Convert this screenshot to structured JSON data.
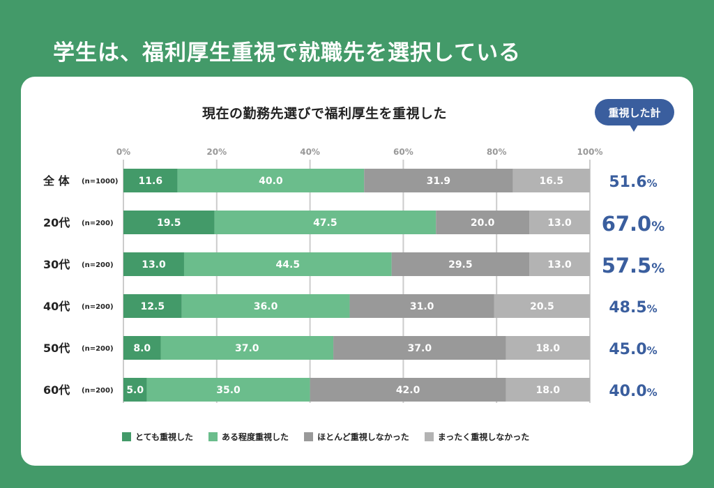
{
  "page": {
    "title": "学生は、福利厚生重視で就職先を選択している"
  },
  "callout": {
    "label": "重視した計"
  },
  "chart_data": {
    "type": "bar",
    "orientation": "horizontal",
    "stacked": true,
    "title": "現在の勤務先選びで福利厚生を重視した",
    "xlabel": "",
    "ylabel": "",
    "xlim": [
      0,
      100
    ],
    "x_ticks": [
      "0%",
      "20%",
      "40%",
      "60%",
      "80%",
      "100%"
    ],
    "grid": true,
    "legend_position": "bottom",
    "categories": [
      {
        "label": "全 体",
        "n": "(n=1000)"
      },
      {
        "label": "20代",
        "n": "(n=200)"
      },
      {
        "label": "30代",
        "n": "(n=200)"
      },
      {
        "label": "40代",
        "n": "(n=200)"
      },
      {
        "label": "50代",
        "n": "(n=200)"
      },
      {
        "label": "60代",
        "n": "(n=200)"
      }
    ],
    "series": [
      {
        "name": "とても重視した",
        "color": "#439a69",
        "values": [
          11.6,
          19.5,
          13.0,
          12.5,
          8.0,
          5.0
        ]
      },
      {
        "name": "ある程度重視した",
        "color": "#6bbd8c",
        "values": [
          40.0,
          47.5,
          44.5,
          36.0,
          37.0,
          35.0
        ]
      },
      {
        "name": "ほとんど重視しなかった",
        "color": "#999999",
        "values": [
          31.9,
          20.0,
          29.5,
          31.0,
          37.0,
          42.0
        ]
      },
      {
        "name": "まったく重視しなかった",
        "color": "#b3b3b3",
        "values": [
          16.5,
          13.0,
          13.0,
          20.5,
          18.0,
          18.0
        ]
      }
    ],
    "totals": {
      "label": "重視した計",
      "values": [
        "51.6",
        "67.0",
        "57.5",
        "48.5",
        "45.0",
        "40.0"
      ],
      "unit": "%",
      "emphasized": [
        false,
        true,
        true,
        false,
        false,
        false
      ]
    }
  },
  "colors": {
    "background": "#439a69",
    "accent_blue": "#3a5e9e"
  }
}
